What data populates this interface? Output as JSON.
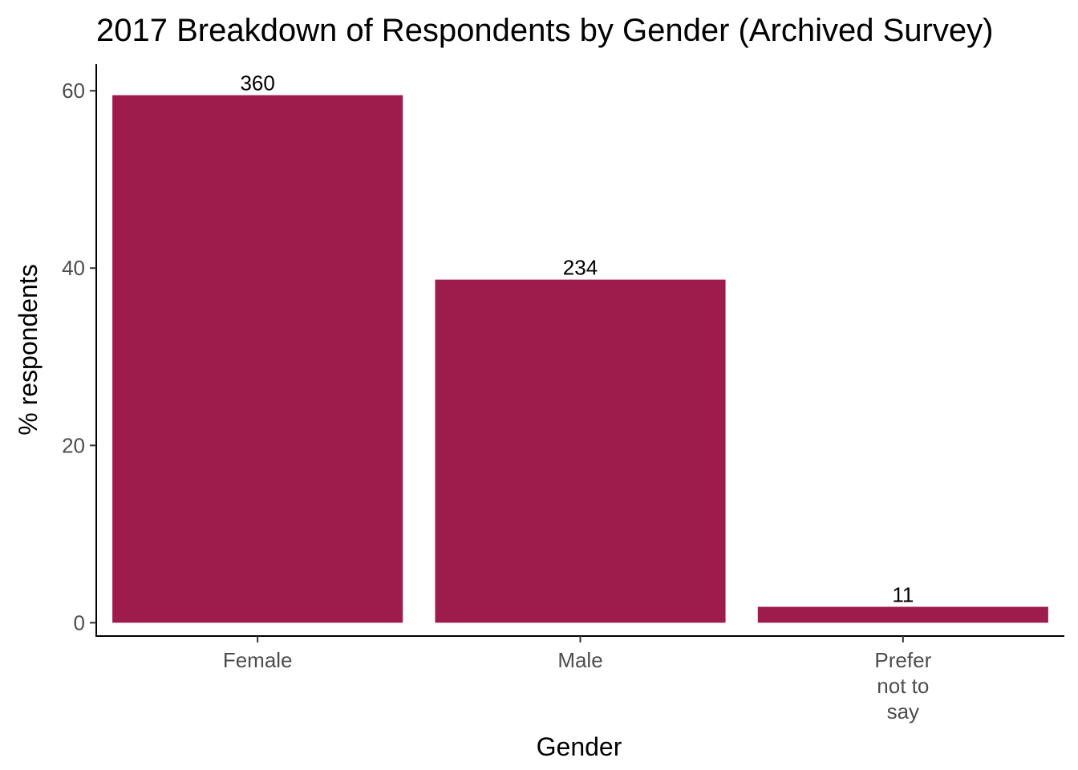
{
  "chart_data": {
    "type": "bar",
    "title": "2017 Breakdown of Respondents by Gender (Archived Survey)",
    "xlabel": "Gender",
    "ylabel": "% respondents",
    "categories": [
      [
        "Female"
      ],
      [
        "Male"
      ],
      [
        "Prefer",
        "not to",
        "say"
      ]
    ],
    "values": [
      59.5,
      38.7,
      1.8
    ],
    "data_labels": [
      "360",
      "234",
      "11"
    ],
    "ylim": [
      -1.5,
      63
    ],
    "yticks": [
      0,
      20,
      40,
      60
    ],
    "ytick_labels": [
      "0",
      "20",
      "40",
      "60"
    ],
    "bar_color": "#9e1c4c",
    "grid": false,
    "legend": "none"
  }
}
